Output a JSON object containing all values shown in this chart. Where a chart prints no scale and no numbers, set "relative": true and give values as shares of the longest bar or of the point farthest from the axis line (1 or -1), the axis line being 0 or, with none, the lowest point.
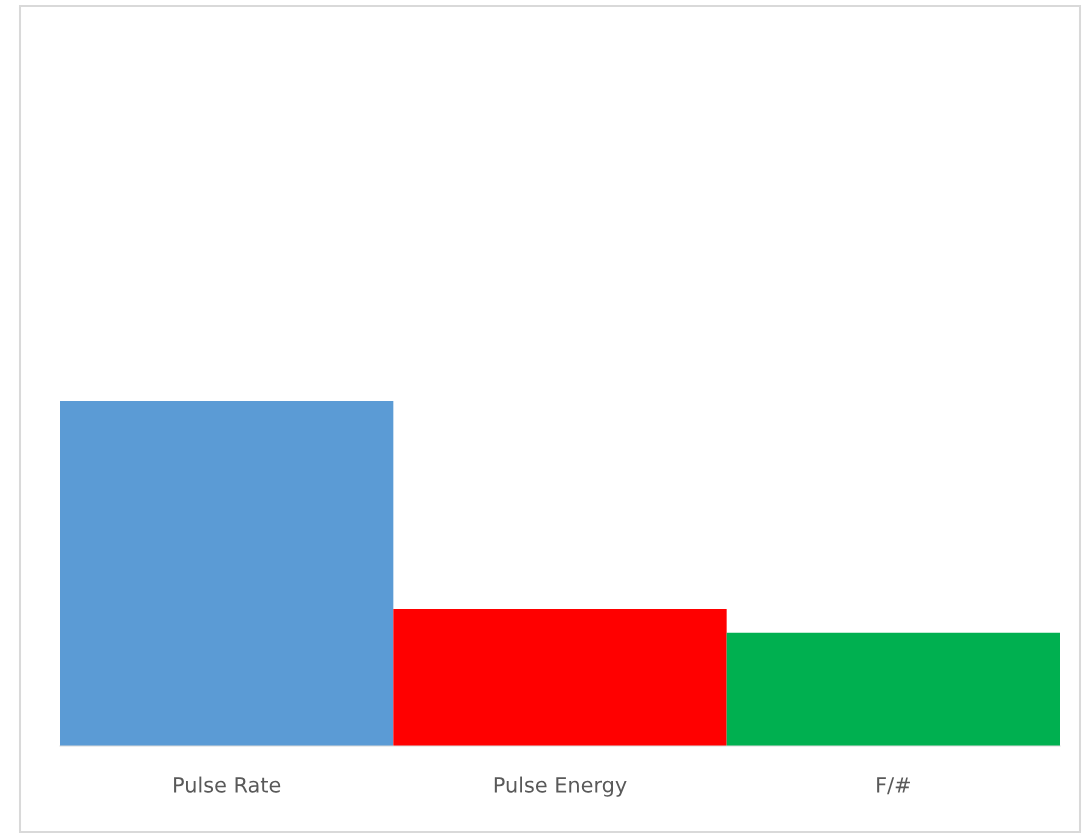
{
  "chart_data": {
    "type": "bar",
    "relative": true,
    "categories": [
      "Pulse Rate",
      "Pulse Energy",
      "F/#"
    ],
    "values": [
      1,
      0.397,
      0.328
    ],
    "colors": [
      "#5b9bd5",
      "#ff0000",
      "#00b050"
    ],
    "grid": false,
    "legend": false
  }
}
